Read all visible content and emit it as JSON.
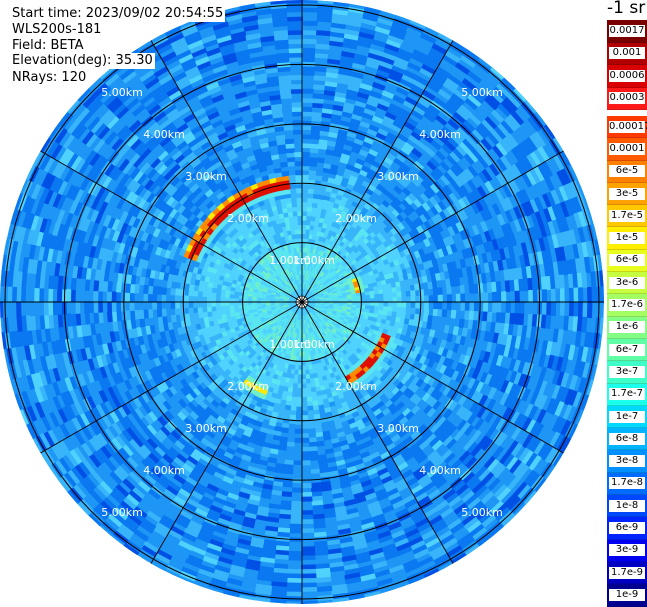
{
  "info": {
    "start_time": "Start time: 2023/09/02 20:54:55",
    "instrument": "WLS200s-181",
    "field": "Field: BETA",
    "elevation": "Elevation(deg): 35.30",
    "nrays": "NRays: 120"
  },
  "colorbar": {
    "units": "-1 sr",
    "top_group": [
      {
        "label": "0.0017",
        "color": "#7a0000"
      },
      {
        "label": "0.001",
        "color": "#b00000"
      },
      {
        "label": "0.0006",
        "color": "#d80000"
      },
      {
        "label": "0.0003",
        "color": "#ff1a1a"
      }
    ],
    "main_group": [
      {
        "label": "0.00017",
        "color": "#ff3a00"
      },
      {
        "label": "0.0001",
        "color": "#ff5a00"
      },
      {
        "label": "6e-5",
        "color": "#ff8000"
      },
      {
        "label": "3e-5",
        "color": "#ffa200"
      },
      {
        "label": "1.7e-5",
        "color": "#ffc800"
      },
      {
        "label": "1e-5",
        "color": "#ffee00"
      },
      {
        "label": "6e-6",
        "color": "#e8ff1e"
      },
      {
        "label": "3e-6",
        "color": "#c6ff40"
      },
      {
        "label": "1.7e-6",
        "color": "#a4ff62"
      },
      {
        "label": "1e-6",
        "color": "#82ff84"
      },
      {
        "label": "6e-7",
        "color": "#60ffa6"
      },
      {
        "label": "3e-7",
        "color": "#3effc8"
      },
      {
        "label": "1.7e-7",
        "color": "#1cffea"
      },
      {
        "label": "1e-7",
        "color": "#00d8ff"
      },
      {
        "label": "6e-8",
        "color": "#00b4ff"
      },
      {
        "label": "3e-8",
        "color": "#0090ff"
      },
      {
        "label": "1.7e-8",
        "color": "#006cff"
      },
      {
        "label": "1e-8",
        "color": "#0048ff"
      },
      {
        "label": "6e-9",
        "color": "#0024ff"
      },
      {
        "label": "3e-9",
        "color": "#0000f0"
      },
      {
        "label": "1.7e-9",
        "color": "#0000c0"
      },
      {
        "label": "1e-9",
        "color": "#000090"
      }
    ]
  },
  "chart_data": {
    "type": "heatmap",
    "projection": "polar (PPI lidar scan)",
    "field": "BETA",
    "n_rays": 120,
    "elevation_deg": 35.3,
    "range_rings_km": [
      1,
      2,
      3,
      4,
      5
    ],
    "ring_labels": [
      "1.00km",
      "2.00km",
      "3.00km",
      "4.00km",
      "5.00km"
    ],
    "spoke_angles_deg": [
      0,
      30,
      60,
      90,
      120,
      150,
      180,
      210,
      240,
      270,
      300,
      330
    ],
    "max_range_km": 6.0,
    "background_level": "3e-8",
    "inner_level_within_2km": "3e-7",
    "high_backscatter_arcs": [
      {
        "start_azimuth_deg": 290,
        "end_azimuth_deg": 355,
        "range_km": 2.35,
        "peak": "0.0003"
      },
      {
        "start_azimuth_deg": 110,
        "end_azimuth_deg": 150,
        "range_km": 1.8,
        "peak": "0.0003"
      },
      {
        "start_azimuth_deg": 200,
        "end_azimuth_deg": 215,
        "range_km": 1.95,
        "peak": "1.7e-5"
      },
      {
        "start_azimuth_deg": 65,
        "end_azimuth_deg": 80,
        "range_km": 1.1,
        "peak": "1.7e-5"
      }
    ]
  }
}
